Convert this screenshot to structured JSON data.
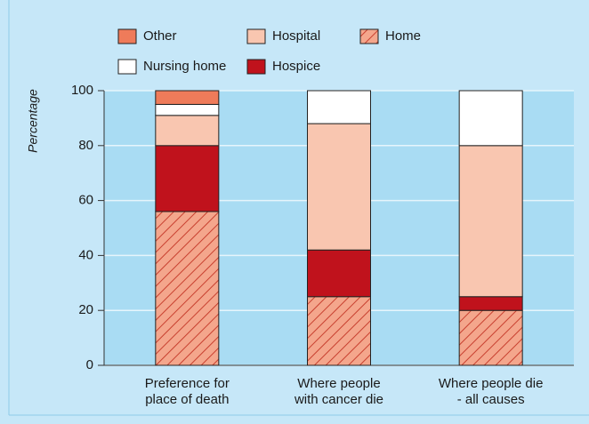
{
  "chart_data": {
    "type": "stacked_bar",
    "ylabel": "Percentage",
    "categories": [
      [
        "Preference for",
        "place of death"
      ],
      [
        "Where people",
        "with cancer die"
      ],
      [
        "Where people die",
        "- all causes"
      ]
    ],
    "series": [
      {
        "name": "Home",
        "color": "#f4a68c",
        "pattern": "hatch",
        "hatch_color": "#c8402f",
        "values": [
          56,
          25,
          20
        ]
      },
      {
        "name": "Hospice",
        "color": "#c0121c",
        "values": [
          24,
          17,
          5
        ]
      },
      {
        "name": "Hospital",
        "color": "#f9c6b0",
        "values": [
          11,
          46,
          55
        ]
      },
      {
        "name": "Nursing home",
        "color": "#ffffff",
        "values": [
          4,
          12,
          20
        ]
      },
      {
        "name": "Other",
        "color": "#ef7b5a",
        "values": [
          5,
          0,
          0
        ]
      }
    ],
    "ylim": [
      0,
      100
    ],
    "yticks": [
      0,
      20,
      40,
      60,
      80,
      100
    ],
    "grid": true
  }
}
